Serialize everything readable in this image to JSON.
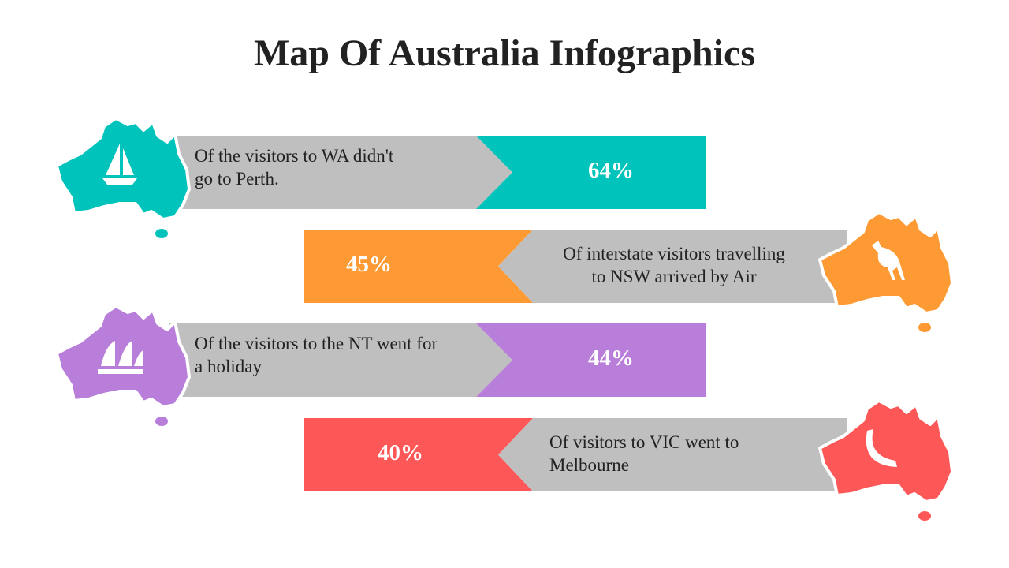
{
  "header": {
    "title": "Map Of Australia Infographics"
  },
  "items": [
    {
      "lines": [
        "Of the visitors to WA didn't",
        "go to Perth."
      ],
      "value": "64%",
      "color": "#00c4bb"
    },
    {
      "lines": [
        "Of interstate visitors travelling",
        "to NSW arrived by Air"
      ],
      "value": "45%",
      "color": "#fd9a33"
    },
    {
      "lines": [
        "Of the visitors to the NT went for",
        "a holiday"
      ],
      "value": "44%",
      "color": "#b87ed9"
    },
    {
      "lines": [
        "Of visitors to VIC went to",
        "Melbourne"
      ],
      "value": "40%",
      "color": "#fe5757"
    }
  ]
}
